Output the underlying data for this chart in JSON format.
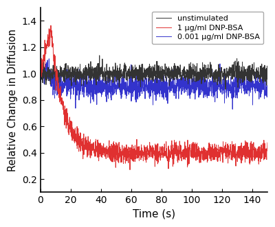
{
  "title": "",
  "xlabel": "Time (s)",
  "ylabel": "Relative Change in Diffusion",
  "xlim": [
    0,
    150
  ],
  "ylim": [
    0.1,
    1.5
  ],
  "yticks": [
    0.2,
    0.4,
    0.6,
    0.8,
    1.0,
    1.2,
    1.4
  ],
  "xticks": [
    0,
    20,
    40,
    60,
    80,
    100,
    120,
    140
  ],
  "legend_labels": [
    "unstimulated",
    "1 μg/ml DNP-BSA",
    "0.001 μg/ml DNP-BSA"
  ],
  "line_colors": [
    "#333333",
    "#e03030",
    "#3333cc"
  ],
  "seed": 12345,
  "n_points": 1500,
  "t_max": 150,
  "unstim_baseline": 1.0,
  "unstim_noise": 0.035,
  "high_dose_peak": 1.33,
  "high_dose_peak_t": 7.0,
  "high_dose_plateau": 0.4,
  "high_dose_decay_tau": 8.0,
  "high_dose_noise": 0.038,
  "low_dose_drop_t": 6.0,
  "low_dose_plateau": 0.905,
  "low_dose_decay_tau": 5.0,
  "low_dose_noise": 0.048,
  "background_color": "#ffffff",
  "linewidth": 0.7
}
